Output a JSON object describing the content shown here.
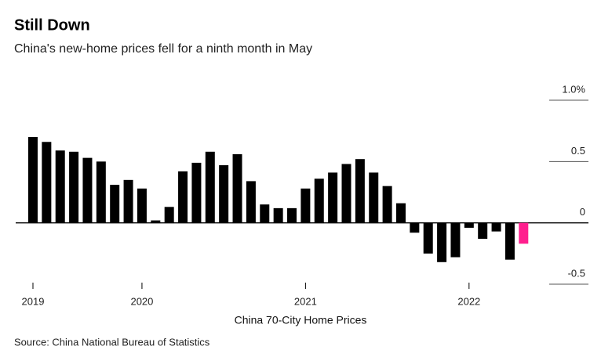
{
  "chart_data": {
    "type": "bar",
    "title": "Still Down",
    "subtitle": "China's new-home prices fell for a ninth month in May",
    "x_label": "China 70-City Home Prices",
    "source": "Source: China National Bureau of Statistics",
    "categories": [
      "2019",
      null,
      null,
      null,
      null,
      null,
      null,
      null,
      "2020",
      null,
      null,
      null,
      null,
      null,
      null,
      null,
      null,
      null,
      null,
      null,
      "2021",
      null,
      null,
      null,
      null,
      null,
      null,
      null,
      null,
      null,
      null,
      null,
      "2022",
      null,
      null,
      null,
      null
    ],
    "values": [
      0.7,
      0.66,
      0.59,
      0.58,
      0.53,
      0.5,
      0.31,
      0.35,
      0.28,
      0.02,
      0.13,
      0.42,
      0.49,
      0.58,
      0.47,
      0.56,
      0.34,
      0.15,
      0.12,
      0.12,
      0.28,
      0.36,
      0.41,
      0.48,
      0.52,
      0.41,
      0.3,
      0.16,
      -0.08,
      -0.25,
      -0.32,
      -0.28,
      -0.04,
      -0.13,
      -0.07,
      -0.3,
      -0.17
    ],
    "colors": [
      "#000000",
      "#000000",
      "#000000",
      "#000000",
      "#000000",
      "#000000",
      "#000000",
      "#000000",
      "#000000",
      "#000000",
      "#000000",
      "#000000",
      "#000000",
      "#000000",
      "#000000",
      "#000000",
      "#000000",
      "#000000",
      "#000000",
      "#000000",
      "#000000",
      "#000000",
      "#000000",
      "#000000",
      "#000000",
      "#000000",
      "#000000",
      "#000000",
      "#000000",
      "#000000",
      "#000000",
      "#000000",
      "#000000",
      "#000000",
      "#000000",
      "#000000",
      "#ff1f8e"
    ],
    "ylim": [
      -0.5,
      1.0
    ],
    "yticks": [
      {
        "value": 1.0,
        "label": "1.0%"
      },
      0.5,
      0,
      -0.5
    ]
  }
}
